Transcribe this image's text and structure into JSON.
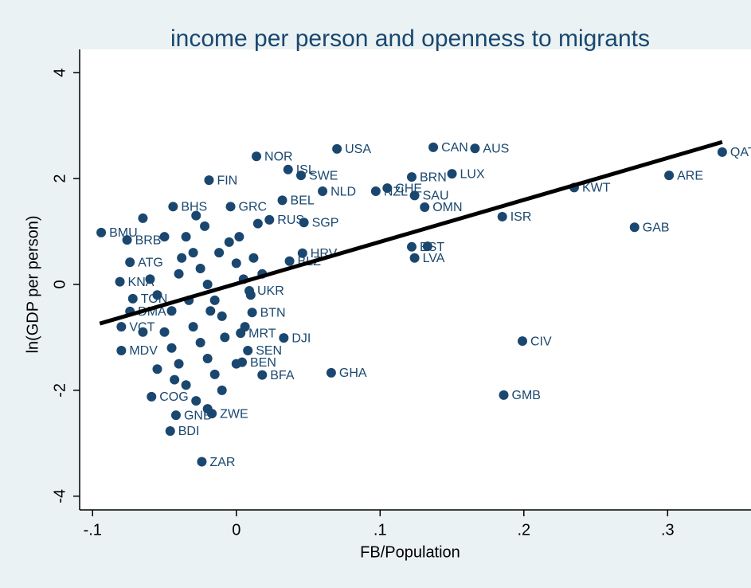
{
  "chart_data": {
    "type": "scatter",
    "title": "income per person and openness to migrants",
    "xlabel": "FB/Population",
    "ylabel": "ln(GDP per person)",
    "xlim": [
      -0.109,
      0.358
    ],
    "ylim": [
      -4.26,
      4.44
    ],
    "xticks": [
      {
        "value": -0.1,
        "label": "-.1"
      },
      0,
      {
        "value": 0.1,
        "label": ".1"
      },
      {
        "value": 0.2,
        "label": ".2"
      },
      {
        "value": 0.3,
        "label": ".3"
      }
    ],
    "yticks": [
      4,
      2,
      0,
      -2,
      -4
    ],
    "series": [
      {
        "color": "#1a476f",
        "x": [
          0.338,
          0.301,
          0.235,
          0.277,
          0.185,
          0.199,
          0.186,
          0.137,
          0.166,
          0.15,
          0.122,
          0.105,
          0.097,
          0.124,
          0.131,
          0.122,
          0.133,
          0.124,
          0.07,
          0.066,
          0.014,
          0.036,
          0.045,
          0.06,
          0.032,
          0.047,
          0.023,
          0.046,
          0.037,
          0.011,
          0.003,
          0.033,
          0.008,
          0.004,
          0.018,
          -0.024,
          -0.046,
          -0.004,
          -0.019,
          -0.044,
          -0.094,
          -0.076,
          -0.074,
          -0.081,
          -0.072,
          -0.074,
          -0.08,
          -0.08,
          0.009,
          -0.017,
          -0.042,
          -0.059,
          -0.035,
          -0.03,
          -0.025,
          -0.02,
          -0.015,
          -0.01,
          -0.005,
          0.0,
          0.005,
          0.01,
          -0.04,
          -0.045,
          -0.03,
          -0.025,
          -0.02,
          -0.015,
          -0.01,
          -0.028,
          -0.035,
          -0.04,
          -0.045,
          -0.05,
          -0.055,
          -0.06,
          -0.038,
          -0.022,
          -0.012,
          0.002,
          0.012,
          0.018,
          0.015,
          -0.028,
          -0.008,
          0.006,
          -0.018,
          -0.033,
          -0.043,
          -0.02,
          0.0,
          -0.05,
          -0.065,
          -0.055,
          -0.065
        ],
        "values": [
          2.5,
          2.06,
          1.83,
          1.08,
          1.28,
          -1.07,
          -2.09,
          2.59,
          2.57,
          2.09,
          2.03,
          1.82,
          1.76,
          1.68,
          1.46,
          0.71,
          0.72,
          0.5,
          2.56,
          -1.67,
          2.42,
          2.17,
          2.06,
          1.76,
          1.59,
          1.17,
          1.22,
          0.59,
          0.44,
          -0.53,
          -0.92,
          -1.01,
          -1.25,
          -1.47,
          -1.71,
          -3.35,
          -2.77,
          1.47,
          1.97,
          1.47,
          0.98,
          0.84,
          0.42,
          0.05,
          -0.27,
          -0.51,
          -0.8,
          -1.25,
          -0.12,
          -2.44,
          -2.47,
          -2.12,
          0.9,
          0.6,
          0.3,
          0.0,
          -0.3,
          -0.6,
          0.8,
          0.4,
          0.1,
          -0.2,
          0.2,
          -0.5,
          -0.8,
          -1.1,
          -1.4,
          -1.7,
          -2.0,
          -2.2,
          -1.9,
          -1.5,
          -1.2,
          -0.9,
          -0.2,
          0.1,
          0.5,
          1.1,
          0.6,
          0.9,
          0.5,
          0.2,
          1.15,
          1.3,
          -1.0,
          -0.8,
          -0.5,
          -0.3,
          -1.8,
          -2.35,
          -1.5,
          0.9,
          1.25,
          -1.6,
          -0.9
        ],
        "labels": [
          "QAT",
          "ARE",
          "KWT",
          "GAB",
          "ISR",
          "CIV",
          "GMB",
          "CAN",
          "AUS",
          "LUX",
          "BRN",
          "CHE",
          "NZL",
          "SAU",
          "OMN",
          "EST",
          null,
          "LVA",
          "USA",
          "GHA",
          "NOR",
          "ISL",
          "SWE",
          "NLD",
          "BEL",
          "SGP",
          "RUS",
          "HRV",
          "BLZ",
          "BTN",
          "MRT",
          "DJI",
          "SEN",
          "BEN",
          "BFA",
          "ZAR",
          "BDI",
          "GRC",
          "FIN",
          "BHS",
          "BMU",
          "BRB",
          "ATG",
          "KNA",
          "TON",
          "DMA",
          "VCT",
          "MDV",
          "UKR",
          "ZWE",
          "GNB",
          "COG",
          null,
          null,
          null,
          null,
          null,
          null,
          null,
          null,
          null,
          null,
          null,
          null,
          null,
          null,
          null,
          null,
          null,
          null,
          null,
          null,
          null,
          null,
          null,
          null,
          null,
          null,
          null,
          null,
          null,
          null,
          null,
          null,
          null,
          null,
          null,
          null,
          null,
          null,
          null,
          null,
          null,
          null,
          null
        ]
      }
    ],
    "fit": {
      "color": "#000000",
      "x": [
        -0.095,
        0.338
      ],
      "values": [
        -0.74,
        2.69
      ]
    }
  }
}
